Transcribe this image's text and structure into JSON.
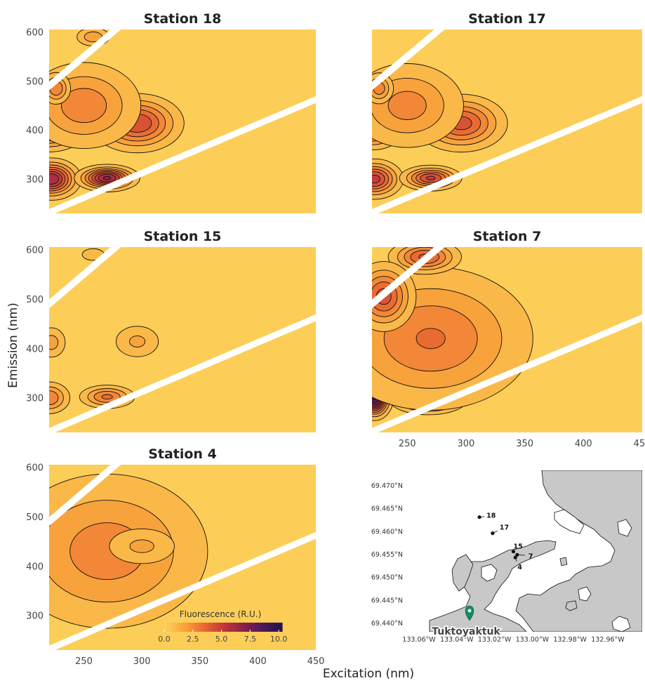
{
  "figure": {
    "ylabel": "Emission (nm)",
    "xlabel": "Excitation (nm)"
  },
  "colorbar": {
    "label": "Fluorescence (R.U.)",
    "ticks": [
      0.0,
      2.5,
      5.0,
      7.5,
      10.0
    ],
    "tick_labels": [
      "0.0",
      "2.5",
      "5.0",
      "7.5",
      "10.0"
    ],
    "range": [
      0,
      10.3
    ],
    "colors": [
      "#fcd35a",
      "#f9a53c",
      "#ea6a32",
      "#c2363a",
      "#8c2148",
      "#4a1a5c",
      "#251347"
    ]
  },
  "chart_data": [
    {
      "type": "heatmap",
      "title": "Station 18",
      "xlim": [
        220,
        450
      ],
      "ylim": [
        230,
        605
      ],
      "yticks": [
        300,
        400,
        500,
        600
      ],
      "ytick_labels": [
        "300",
        "400",
        "500",
        "600"
      ],
      "xticks": [],
      "xtick_labels": [],
      "peaks": [
        {
          "ex": 220,
          "em": 410,
          "value": 6.6,
          "sx": 16,
          "sy": 25
        },
        {
          "ex": 222,
          "em": 300,
          "value": 6.2,
          "sx": 12,
          "sy": 20
        },
        {
          "ex": 270,
          "em": 302,
          "value": 6.4,
          "sx": 13,
          "sy": 13
        },
        {
          "ex": 296,
          "em": 414,
          "value": 4.6,
          "sx": 20,
          "sy": 30
        },
        {
          "ex": 250,
          "em": 450,
          "value": 2.8,
          "sx": 28,
          "sy": 50
        },
        {
          "ex": 258,
          "em": 590,
          "value": 2.0,
          "sx": 9,
          "sy": 12
        },
        {
          "ex": 226,
          "em": 485,
          "value": 3.0,
          "sx": 7,
          "sy": 18
        }
      ]
    },
    {
      "type": "heatmap",
      "title": "Station 17",
      "xlim": [
        220,
        450
      ],
      "ylim": [
        230,
        605
      ],
      "yticks": [
        300,
        400,
        500,
        600
      ],
      "ytick_labels": [
        "",
        "",
        "",
        ""
      ],
      "xticks": [],
      "xtick_labels": [],
      "peaks": [
        {
          "ex": 220,
          "em": 410,
          "value": 5.6,
          "sx": 14,
          "sy": 24
        },
        {
          "ex": 222,
          "em": 300,
          "value": 5.0,
          "sx": 12,
          "sy": 20
        },
        {
          "ex": 270,
          "em": 302,
          "value": 4.8,
          "sx": 13,
          "sy": 13
        },
        {
          "ex": 296,
          "em": 414,
          "value": 4.2,
          "sx": 20,
          "sy": 30
        },
        {
          "ex": 250,
          "em": 450,
          "value": 2.6,
          "sx": 28,
          "sy": 50
        },
        {
          "ex": 226,
          "em": 485,
          "value": 2.8,
          "sx": 7,
          "sy": 18
        }
      ]
    },
    {
      "type": "heatmap",
      "title": "Station 15",
      "xlim": [
        220,
        450
      ],
      "ylim": [
        230,
        605
      ],
      "yticks": [
        300,
        400,
        500,
        600
      ],
      "ytick_labels": [
        "300",
        "400",
        "500",
        "600"
      ],
      "xticks": [],
      "xtick_labels": [],
      "peaks": [
        {
          "ex": 220,
          "em": 300,
          "value": 3.0,
          "sx": 10,
          "sy": 18
        },
        {
          "ex": 270,
          "em": 302,
          "value": 3.2,
          "sx": 13,
          "sy": 13
        },
        {
          "ex": 296,
          "em": 414,
          "value": 1.6,
          "sx": 13,
          "sy": 22
        },
        {
          "ex": 222,
          "em": 412,
          "value": 1.8,
          "sx": 8,
          "sy": 20
        },
        {
          "ex": 258,
          "em": 590,
          "value": 1.2,
          "sx": 8,
          "sy": 10
        }
      ]
    },
    {
      "type": "heatmap",
      "title": "Station 7",
      "xlim": [
        220,
        450
      ],
      "ylim": [
        230,
        605
      ],
      "yticks": [
        300,
        400,
        500,
        600
      ],
      "ytick_labels": [
        "",
        "",
        "",
        ""
      ],
      "xticks": [
        250,
        300,
        350,
        400,
        450
      ],
      "xtick_labels": [
        "250",
        "300",
        "350",
        "400",
        "450"
      ],
      "peaks": [
        {
          "ex": 222,
          "em": 300,
          "value": 8.8,
          "sx": 7,
          "sy": 20
        },
        {
          "ex": 268,
          "em": 300,
          "value": 6.0,
          "sx": 16,
          "sy": 16
        },
        {
          "ex": 270,
          "em": 420,
          "value": 3.1,
          "sx": 48,
          "sy": 80
        },
        {
          "ex": 265,
          "em": 585,
          "value": 4.0,
          "sx": 16,
          "sy": 18
        },
        {
          "ex": 230,
          "em": 505,
          "value": 4.2,
          "sx": 14,
          "sy": 36
        }
      ]
    },
    {
      "type": "heatmap",
      "title": "Station 4",
      "xlim": [
        220,
        450
      ],
      "ylim": [
        230,
        605
      ],
      "yticks": [
        300,
        400,
        500,
        600
      ],
      "ytick_labels": [
        "300",
        "400",
        "500",
        "600"
      ],
      "xticks": [
        250,
        300,
        350,
        400,
        450
      ],
      "xtick_labels": [
        "250",
        "300",
        "350",
        "400",
        "450"
      ],
      "peaks": [
        {
          "ex": 222,
          "em": 420,
          "value": 3.6,
          "sx": 14,
          "sy": 22
        },
        {
          "ex": 270,
          "em": 430,
          "value": 2.7,
          "sx": 50,
          "sy": 90
        },
        {
          "ex": 300,
          "em": 440,
          "value": 1.6,
          "sx": 20,
          "sy": 25
        }
      ]
    }
  ],
  "map": {
    "lat_labels": [
      "69.470°N",
      "69.465°N",
      "69.460°N",
      "69.455°N",
      "69.450°N",
      "69.445°N",
      "69.440°N"
    ],
    "lon_labels": [
      "133.06°W",
      "133.04°W",
      "133.02°W",
      "133.00°W",
      "132.98°W",
      "132.96°W"
    ],
    "town": "Tuktoyaktuk",
    "marker_color": "#138a63",
    "land_color": "#c8c8c8",
    "stations": [
      {
        "id": "18",
        "lon": -133.028,
        "lat": 69.463
      },
      {
        "id": "17",
        "lon": -133.021,
        "lat": 69.4595
      },
      {
        "id": "15",
        "lon": -133.01,
        "lat": 69.4555
      },
      {
        "id": "7",
        "lon": -133.008,
        "lat": 69.4548
      },
      {
        "id": "4",
        "lon": -133.009,
        "lat": 69.4542
      }
    ]
  }
}
